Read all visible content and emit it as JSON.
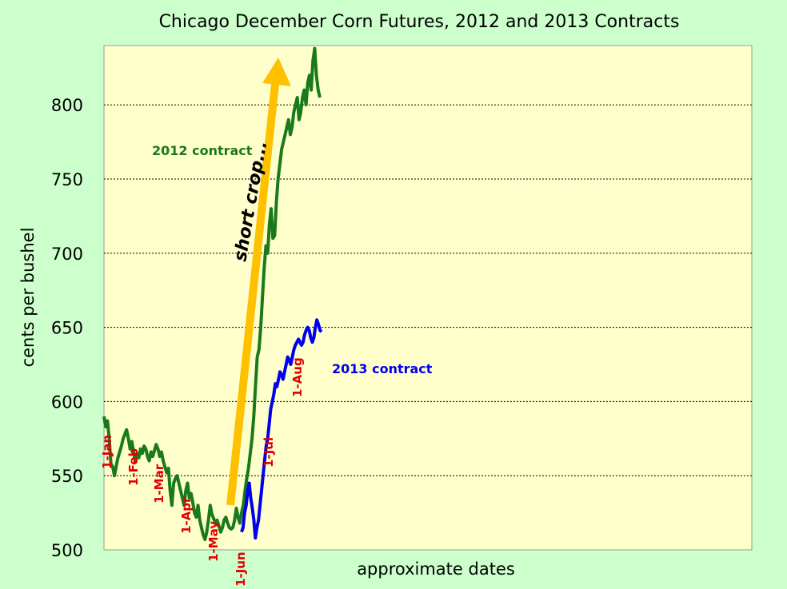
{
  "chart_data": {
    "type": "line",
    "title": "Chicago December Corn Futures, 2012 and 2013 Contracts",
    "xlabel": "approximate dates",
    "ylabel": "cents per bushel",
    "ylim": [
      500,
      840
    ],
    "yticks": [
      500,
      550,
      600,
      650,
      700,
      750,
      800
    ],
    "grid": true,
    "colors": {
      "plot_bg": "#ffffcc",
      "page_bg": "#ccffcc",
      "s2012": "#1a7a1a",
      "s2013": "#0000ee",
      "arrow": "#ffc000",
      "date_label": "#e00000"
    },
    "date_markers": [
      "1-Jan",
      "1-Feb",
      "1-Mar",
      "1-Apr",
      "1-May",
      "1-Jun",
      "1-Jul",
      "1-Aug"
    ],
    "annotations": [
      {
        "text": "short crop..."
      },
      {
        "text": "2012 contract",
        "series": "2012 contract"
      },
      {
        "text": "2013 contract",
        "series": "2013 contract"
      }
    ],
    "series": [
      {
        "name": "2012 contract",
        "y": [
          590,
          583,
          587,
          575,
          558,
          556,
          550,
          556,
          562,
          566,
          570,
          575,
          578,
          581,
          575,
          568,
          573,
          566,
          560,
          565,
          562,
          568,
          565,
          570,
          568,
          563,
          560,
          566,
          563,
          567,
          571,
          568,
          563,
          566,
          560,
          556,
          552,
          555,
          540,
          530,
          545,
          548,
          550,
          545,
          540,
          535,
          530,
          540,
          545,
          535,
          538,
          532,
          525,
          522,
          530,
          520,
          515,
          510,
          507,
          512,
          520,
          530,
          524,
          521,
          518,
          520,
          516,
          512,
          515,
          520,
          522,
          518,
          515,
          514,
          515,
          520,
          528,
          522,
          518,
          525,
          530,
          540,
          548,
          555,
          565,
          575,
          590,
          610,
          630,
          635,
          650,
          670,
          690,
          705,
          700,
          720,
          730,
          710,
          712,
          735,
          750,
          760,
          770,
          775,
          780,
          785,
          790,
          780,
          785,
          795,
          800,
          805,
          790,
          795,
          805,
          810,
          800,
          815,
          820,
          810,
          830,
          838,
          820,
          810,
          805
        ]
      },
      {
        "name": "2013 contract",
        "y": [
          512,
          515,
          525,
          530,
          540,
          545,
          535,
          528,
          520,
          508,
          515,
          520,
          530,
          540,
          550,
          560,
          570,
          575,
          585,
          595,
          600,
          605,
          612,
          610,
          615,
          620,
          618,
          615,
          620,
          625,
          630,
          628,
          625,
          630,
          635,
          638,
          640,
          642,
          640,
          638,
          640,
          645,
          648,
          650,
          648,
          643,
          640,
          643,
          650,
          655,
          652,
          648,
          647
        ]
      }
    ]
  }
}
